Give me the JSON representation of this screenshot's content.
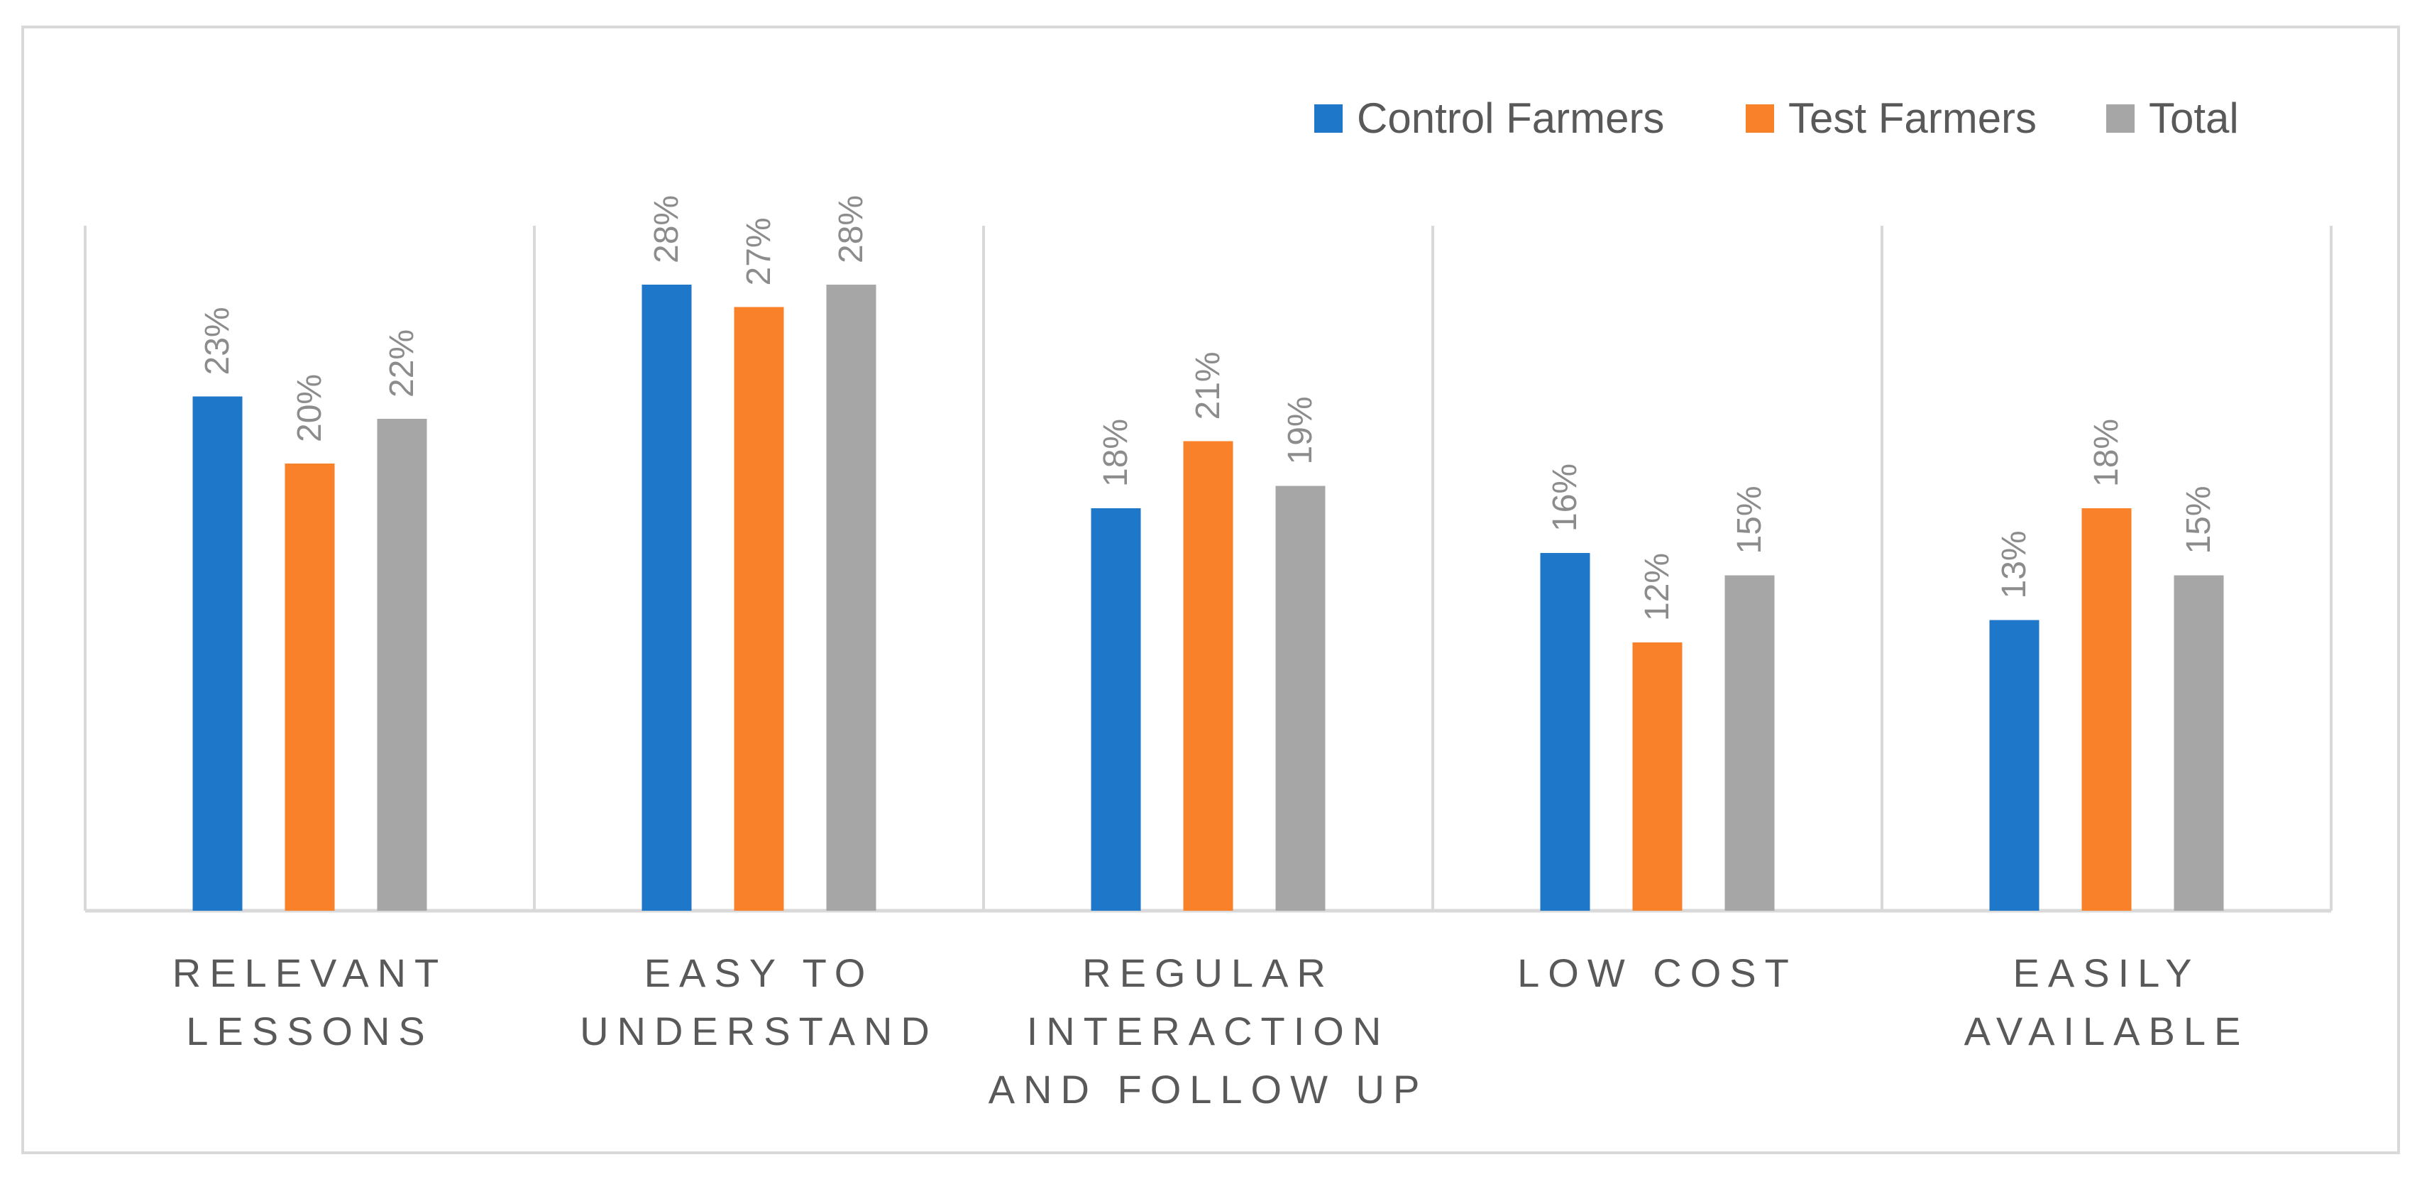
{
  "chart_data": {
    "type": "bar",
    "title": "",
    "xlabel": "",
    "ylabel": "",
    "ylim": [
      0,
      30
    ],
    "grid": false,
    "legend_position": "top-right",
    "categories": [
      [
        "RELEVANT",
        "LESSONS"
      ],
      [
        "EASY TO",
        "UNDERSTAND"
      ],
      [
        "REGULAR",
        "INTERACTION",
        "AND FOLLOW UP"
      ],
      [
        "LOW COST"
      ],
      [
        "EASILY",
        "AVAILABLE"
      ]
    ],
    "series": [
      {
        "name": "Control Farmers",
        "color": "#1f77c9",
        "values": [
          23,
          28,
          18,
          16,
          13
        ],
        "labels": [
          "23%",
          "28%",
          "18%",
          "16%",
          "13%"
        ]
      },
      {
        "name": "Test Farmers",
        "color": "#f9812a",
        "values": [
          20,
          27,
          21,
          12,
          18
        ],
        "labels": [
          "20%",
          "27%",
          "21%",
          "12%",
          "18%"
        ]
      },
      {
        "name": "Total",
        "color": "#a6a6a6",
        "values": [
          22,
          28,
          19,
          15,
          15
        ],
        "labels": [
          "22%",
          "28%",
          "19%",
          "15%",
          "15%"
        ]
      }
    ]
  }
}
